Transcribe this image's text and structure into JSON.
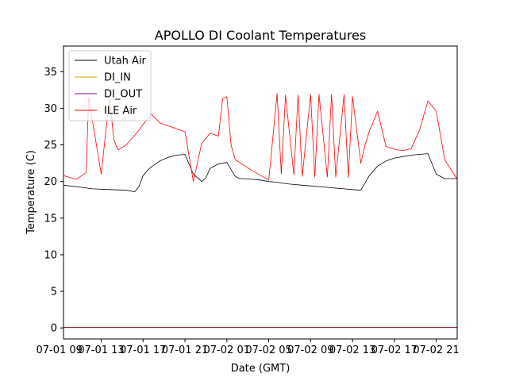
{
  "chart_data": {
    "type": "line",
    "title": "APOLLO DI Coolant Temperatures",
    "xlabel": "Date (GMT)",
    "ylabel": "Temperature (C)",
    "xlim_hours": [
      0.5,
      47.5
    ],
    "ylim": [
      -1.5,
      38.5
    ],
    "y_ticks": [
      0,
      5,
      10,
      15,
      20,
      25,
      30,
      35
    ],
    "x_ticks": [
      {
        "hour": 0,
        "label": "07-01 09"
      },
      {
        "hour": 5,
        "label": "07-01 13"
      },
      {
        "hour": 10,
        "label": "07-01 17"
      },
      {
        "hour": 15,
        "label": "07-01 21"
      },
      {
        "hour": 20,
        "label": "07-02 01"
      },
      {
        "hour": 25,
        "label": "07-02 05"
      },
      {
        "hour": 30,
        "label": "07-02 09"
      },
      {
        "hour": 35,
        "label": "07-02 13"
      },
      {
        "hour": 40,
        "label": "07-02 17"
      },
      {
        "hour": 45,
        "label": "07-02 21"
      }
    ],
    "legend": {
      "position": "top-left"
    },
    "series": [
      {
        "name": "Utah Air",
        "color": "#000000",
        "x": [
          0.5,
          2,
          4,
          6,
          8,
          9,
          9.5,
          10,
          10.5,
          11,
          12,
          13,
          14,
          15,
          16,
          17,
          17.5,
          18,
          19,
          20,
          21,
          21.5,
          22,
          23,
          24,
          25,
          26,
          27,
          28,
          29,
          30,
          31,
          32,
          33,
          34,
          35,
          36,
          37,
          38,
          39,
          40,
          41,
          42,
          43,
          44,
          45,
          46,
          47.5
        ],
        "values": [
          19.5,
          19.3,
          19.0,
          18.9,
          18.8,
          18.6,
          19.3,
          20.8,
          21.5,
          22.0,
          22.8,
          23.3,
          23.6,
          23.7,
          21.0,
          20.0,
          20.5,
          21.8,
          22.4,
          22.6,
          20.7,
          20.4,
          20.4,
          20.3,
          20.2,
          20.0,
          19.9,
          19.7,
          19.6,
          19.5,
          19.4,
          19.3,
          19.2,
          19.1,
          19.0,
          18.9,
          18.8,
          20.8,
          22.1,
          22.8,
          23.2,
          23.4,
          23.6,
          23.7,
          23.8,
          21.0,
          20.4,
          20.4
        ]
      },
      {
        "name": "DI_IN",
        "color": "#d4aa00",
        "x": [
          0.5,
          47.5
        ],
        "values": [
          0.1,
          0.1
        ]
      },
      {
        "name": "DI_OUT",
        "color": "#800080",
        "x": [
          0.5,
          47.5
        ],
        "values": [
          0.05,
          0.05
        ]
      },
      {
        "name": "ILE Air",
        "color": "#ff0000",
        "x": [
          0.5,
          2,
          3.2,
          3.5,
          5,
          6,
          6.5,
          7,
          8,
          9.5,
          10,
          11,
          12,
          13,
          14,
          15,
          16,
          17,
          18,
          19,
          19.5,
          20,
          20.5,
          21,
          23,
          25,
          26,
          26.5,
          27,
          28,
          28.5,
          29,
          30,
          30.5,
          31,
          32,
          32.5,
          33,
          34,
          34.5,
          35,
          36,
          36.5,
          37,
          38,
          39,
          40,
          41,
          42,
          43,
          44,
          45,
          46,
          47.5
        ],
        "values": [
          20.8,
          20.3,
          21.2,
          31.5,
          21.0,
          31.5,
          25.8,
          24.3,
          25.0,
          27.0,
          27.8,
          29.2,
          28.0,
          27.6,
          27.2,
          26.8,
          20.0,
          25.2,
          26.6,
          26.2,
          31.3,
          31.6,
          25.0,
          23.0,
          21.5,
          20.2,
          32.0,
          21.0,
          31.8,
          20.9,
          31.8,
          20.7,
          31.9,
          20.6,
          31.9,
          20.6,
          31.9,
          20.6,
          31.9,
          20.5,
          31.6,
          22.5,
          25.0,
          26.8,
          29.6,
          24.8,
          24.4,
          24.2,
          24.5,
          27.0,
          31.0,
          29.6,
          23.0,
          20.3
        ]
      }
    ]
  }
}
